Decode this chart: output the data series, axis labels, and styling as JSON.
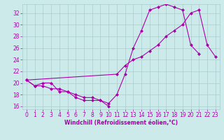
{
  "xlabel": "Windchill (Refroidissement éolien,°C)",
  "bg_color": "#cceaea",
  "grid_color": "#aacccc",
  "line_color": "#aa00aa",
  "xlim": [
    -0.5,
    23.5
  ],
  "ylim": [
    15.5,
    33.5
  ],
  "xticks": [
    0,
    1,
    2,
    3,
    4,
    5,
    6,
    7,
    8,
    9,
    10,
    11,
    12,
    13,
    14,
    15,
    16,
    17,
    18,
    19,
    20,
    21,
    22,
    23
  ],
  "yticks": [
    16,
    18,
    20,
    22,
    24,
    26,
    28,
    30,
    32
  ],
  "line1_x": [
    0,
    1,
    2,
    3,
    4,
    5,
    6,
    7,
    8,
    9,
    10,
    11,
    12,
    13,
    14,
    15,
    16,
    17,
    18,
    19,
    20,
    21
  ],
  "line1_y": [
    20.5,
    19.5,
    20.0,
    20.0,
    18.5,
    18.5,
    18.0,
    17.5,
    17.5,
    17.0,
    16.5,
    18.0,
    21.5,
    26.0,
    29.0,
    32.5,
    33.0,
    33.5,
    33.0,
    32.5,
    26.5,
    25.0
  ],
  "line2_x": [
    0,
    1,
    2,
    3,
    4,
    5,
    6,
    7,
    8,
    9,
    10
  ],
  "line2_y": [
    20.5,
    19.5,
    19.5,
    19.0,
    19.0,
    18.5,
    17.5,
    17.0,
    17.0,
    17.0,
    16.0
  ],
  "line3_x": [
    0,
    11,
    12,
    13,
    14,
    15,
    16,
    17,
    18,
    19,
    20,
    21,
    22,
    23
  ],
  "line3_y": [
    20.5,
    21.5,
    23.0,
    24.0,
    24.5,
    25.5,
    26.5,
    28.0,
    29.0,
    30.0,
    32.0,
    32.5,
    26.5,
    24.5
  ],
  "marker_size": 2.5,
  "line_width": 0.8,
  "tick_fontsize": 5.5,
  "xlabel_fontsize": 5.5
}
